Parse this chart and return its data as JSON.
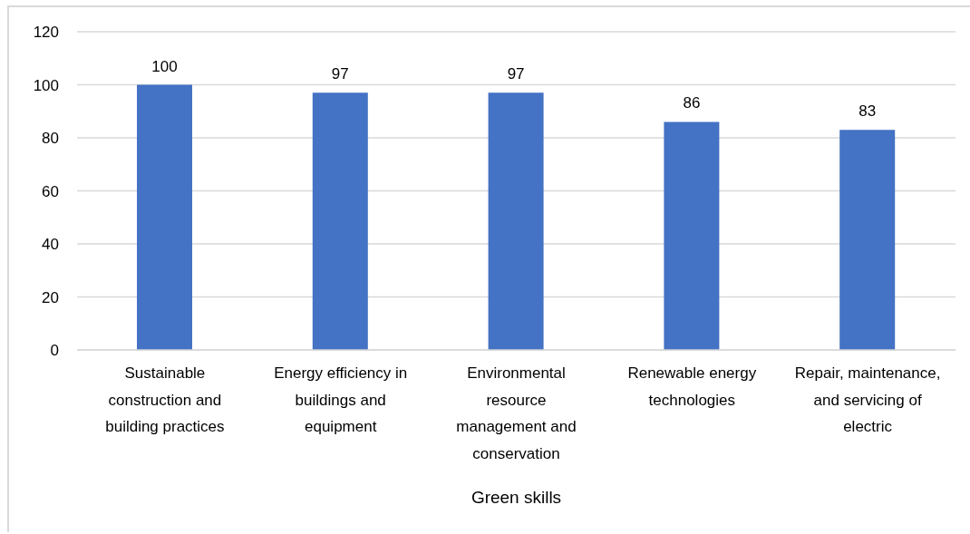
{
  "chart_data": {
    "type": "bar",
    "xlabel": "Green skills",
    "categories": [
      "Sustainable construction and building practices",
      "Energy efficiency in buildings and equipment",
      "Environmental resource management and conservation",
      "Renewable energy technologies",
      "Repair, maintenance, and servicing of electric"
    ],
    "values": [
      100,
      97,
      97,
      86,
      83
    ],
    "color": "#4472c4",
    "ylim": [
      0,
      120
    ],
    "yticks": [
      0,
      20,
      40,
      60,
      80,
      100,
      120
    ],
    "grid": "y",
    "data_labels": true
  }
}
